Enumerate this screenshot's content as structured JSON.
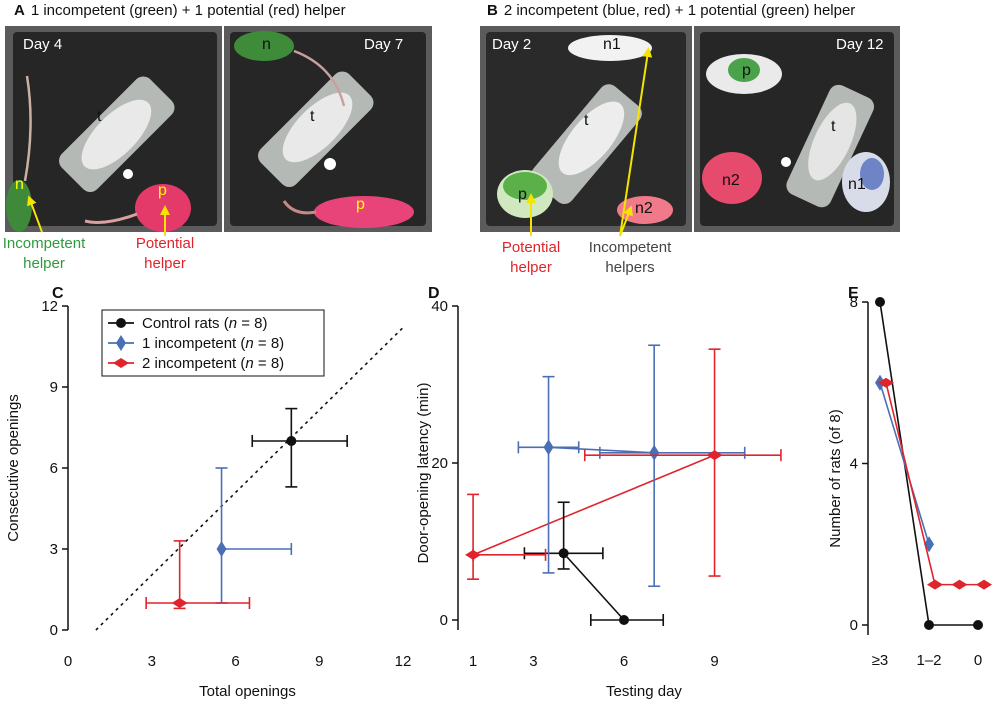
{
  "panel_a": {
    "letter": "A",
    "title": "1 incompetent (green) + 1 potential (red) helper",
    "photo1_day": "Day 4",
    "photo2_day": "Day 7",
    "labels": {
      "trapped": "t",
      "incompetent": "n",
      "potential": "p"
    },
    "caption_incompetent": [
      "Incompetent",
      "helper"
    ],
    "caption_potential": [
      "Potential",
      "helper"
    ]
  },
  "panel_b": {
    "letter": "B",
    "title": "2 incompetent (blue, red) + 1 potential (green) helper",
    "photo1_day": "Day 2",
    "photo2_day": "Day 12",
    "labels": {
      "trapped": "t",
      "n1": "n1",
      "n2": "n2",
      "potential": "p"
    },
    "caption_potential": [
      "Potential",
      "helper"
    ],
    "caption_incompetent": [
      "Incompetent",
      "helpers"
    ]
  },
  "colors": {
    "control": "#111111",
    "one_incompetent": "#4a6fb5",
    "two_incompetent": "#e0242b",
    "caption_green": "#2e9a3e",
    "caption_red": "#e0242b",
    "caption_gray": "#444444",
    "arrow_yellow": "#f5e400"
  },
  "chart_data": [
    {
      "panel": "C",
      "type": "scatter",
      "xlabel": "Total openings",
      "ylabel": "Consecutive openings",
      "xlim": [
        0,
        12
      ],
      "ylim": [
        0,
        12
      ],
      "xticks": [
        "0",
        "3",
        "6",
        "9",
        "12"
      ],
      "yticks": [
        "0",
        "3",
        "6",
        "9",
        "12"
      ],
      "identity_line": {
        "from": [
          1,
          0
        ],
        "to": [
          12,
          11.2
        ],
        "style": "dotted"
      },
      "legend_position": "top-left",
      "legend": [
        {
          "label": "Control rats",
          "n_prefix": "n",
          "n_value": " = 8",
          "key": "control"
        },
        {
          "label": "1 incompetent",
          "n_prefix": "n",
          "n_value": " = 8",
          "key": "one_incompetent"
        },
        {
          "label": "2 incompetent",
          "n_prefix": "n",
          "n_value": " = 8",
          "key": "two_incompetent"
        }
      ],
      "series": [
        {
          "name": "Control rats",
          "key": "control",
          "marker": "circle",
          "points": [
            {
              "x": 8.0,
              "y": 7.0,
              "xerr": [
                6.6,
                10.0
              ],
              "yerr": [
                5.3,
                8.2
              ]
            }
          ]
        },
        {
          "name": "1 incompetent",
          "key": "one_incompetent",
          "marker": "diamond",
          "points": [
            {
              "x": 5.5,
              "y": 3.0,
              "xerr": [
                5.5,
                8.0
              ],
              "yerr": [
                1.0,
                6.0
              ]
            }
          ]
        },
        {
          "name": "2 incompetent",
          "key": "two_incompetent",
          "marker": "diamond-wide",
          "points": [
            {
              "x": 4.0,
              "y": 1.0,
              "xerr": [
                2.8,
                6.5
              ],
              "yerr": [
                0.8,
                3.3
              ]
            }
          ]
        }
      ]
    },
    {
      "panel": "D",
      "type": "line",
      "xlabel": "Testing day",
      "ylabel": "Door-opening latency (min)",
      "xlim": [
        0.5,
        11.5
      ],
      "ylim": [
        -1,
        40
      ],
      "xticks": [
        "1",
        "3",
        "6",
        "9"
      ],
      "yticks": [
        "0",
        "20",
        "40"
      ],
      "series": [
        {
          "name": "Control rats",
          "key": "control",
          "marker": "circle",
          "points": [
            {
              "x": 4.0,
              "y": 8.5,
              "xerr": [
                2.7,
                5.3
              ],
              "yerr": [
                6.5,
                15.0
              ]
            },
            {
              "x": 6.0,
              "y": 0.0,
              "xerr": [
                4.9,
                7.3
              ],
              "yerr": [
                0.0,
                0.0
              ]
            }
          ]
        },
        {
          "name": "1 incompetent",
          "key": "one_incompetent",
          "marker": "diamond",
          "points": [
            {
              "x": 3.5,
              "y": 22.0,
              "xerr": [
                2.5,
                4.5
              ],
              "yerr": [
                6.0,
                31.0
              ]
            },
            {
              "x": 7.0,
              "y": 21.3,
              "xerr": [
                5.2,
                10.0
              ],
              "yerr": [
                4.3,
                35.0
              ]
            }
          ]
        },
        {
          "name": "2 incompetent",
          "key": "two_incompetent",
          "marker": "diamond-wide",
          "points": [
            {
              "x": 1.0,
              "y": 8.3,
              "xerr": [
                1.0,
                3.4
              ],
              "yerr": [
                5.2,
                16.0
              ]
            },
            {
              "x": 9.0,
              "y": 21.0,
              "xerr": [
                4.7,
                11.2
              ],
              "yerr": [
                5.6,
                34.5
              ]
            }
          ]
        }
      ]
    },
    {
      "panel": "E",
      "type": "line",
      "xlabel": "",
      "ylabel": "Number of rats (of 8)",
      "categories": [
        "≥3",
        "1–2",
        "0"
      ],
      "ylim": [
        0,
        8
      ],
      "yticks": [
        "0",
        "4",
        "8"
      ],
      "series": [
        {
          "name": "Control rats",
          "key": "control",
          "marker": "circle",
          "values": [
            8,
            0,
            0
          ]
        },
        {
          "name": "1 incompetent",
          "key": "one_incompetent",
          "marker": "diamond",
          "values": [
            6,
            2,
            null
          ]
        },
        {
          "name": "2 incompetent",
          "key": "two_incompetent",
          "marker": "diamond-wide",
          "values": [
            6,
            1,
            1
          ],
          "extra_points": [
            {
              "x": 1.5,
              "y": 1
            }
          ]
        }
      ]
    }
  ]
}
